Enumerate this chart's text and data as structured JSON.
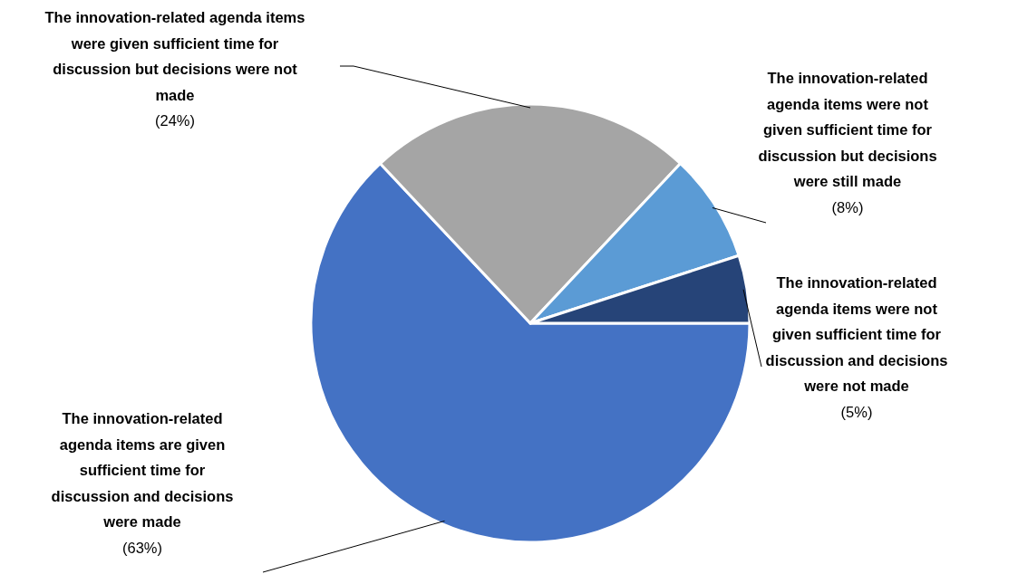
{
  "chart_data": {
    "type": "pie",
    "categories": [
      "The innovation-related agenda items are given sufficient time for discussion and decisions were made",
      "The innovation-related agenda items were given sufficient time for discussion but decisions were not made",
      "The innovation-related agenda items were not given sufficient time for discussion but decisions were still made",
      "The innovation-related agenda items were not given sufficient time for discussion and decisions were not made"
    ],
    "values": [
      63,
      24,
      8,
      5
    ],
    "value_labels": [
      "(63%)",
      "(24%)",
      "(8%)",
      "(5%)"
    ],
    "colors": [
      "#4472c4",
      "#a5a5a5",
      "#5b9bd5",
      "#264478"
    ]
  }
}
